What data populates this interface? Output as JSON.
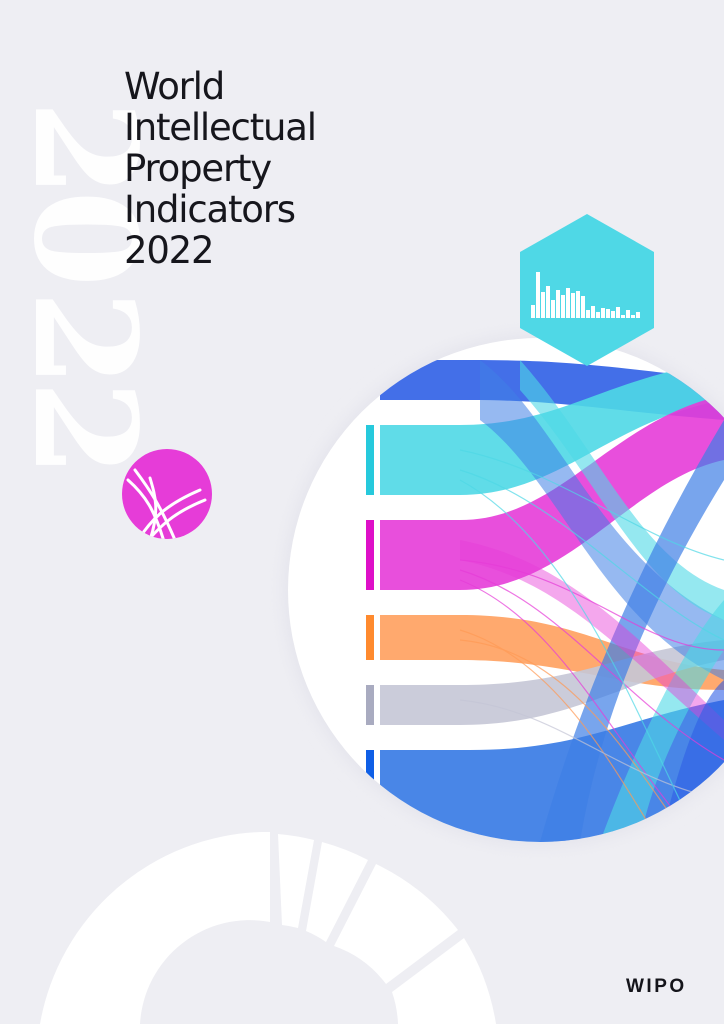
{
  "cover": {
    "title_lines": [
      "World",
      "Intellectual",
      "Property",
      "Indicators",
      "2022"
    ],
    "publisher_logo": "WIPO",
    "decorative_year_watermark": "2022"
  },
  "icons": {
    "hexagon": "bar-chart-hexagon-icon",
    "circle": "dna-helix-circle-icon",
    "ring": "segmented-ring-graphic",
    "sankey": "sankey-flow-circle-graphic"
  },
  "colors": {
    "background": "#eeeef3",
    "cyan": "#4fd8e6",
    "magenta": "#e63cd8",
    "orange": "#ff9a55",
    "grey": "#c5c6d6",
    "blue": "#3f7fe6",
    "dark_blue": "#0f3fd8"
  }
}
